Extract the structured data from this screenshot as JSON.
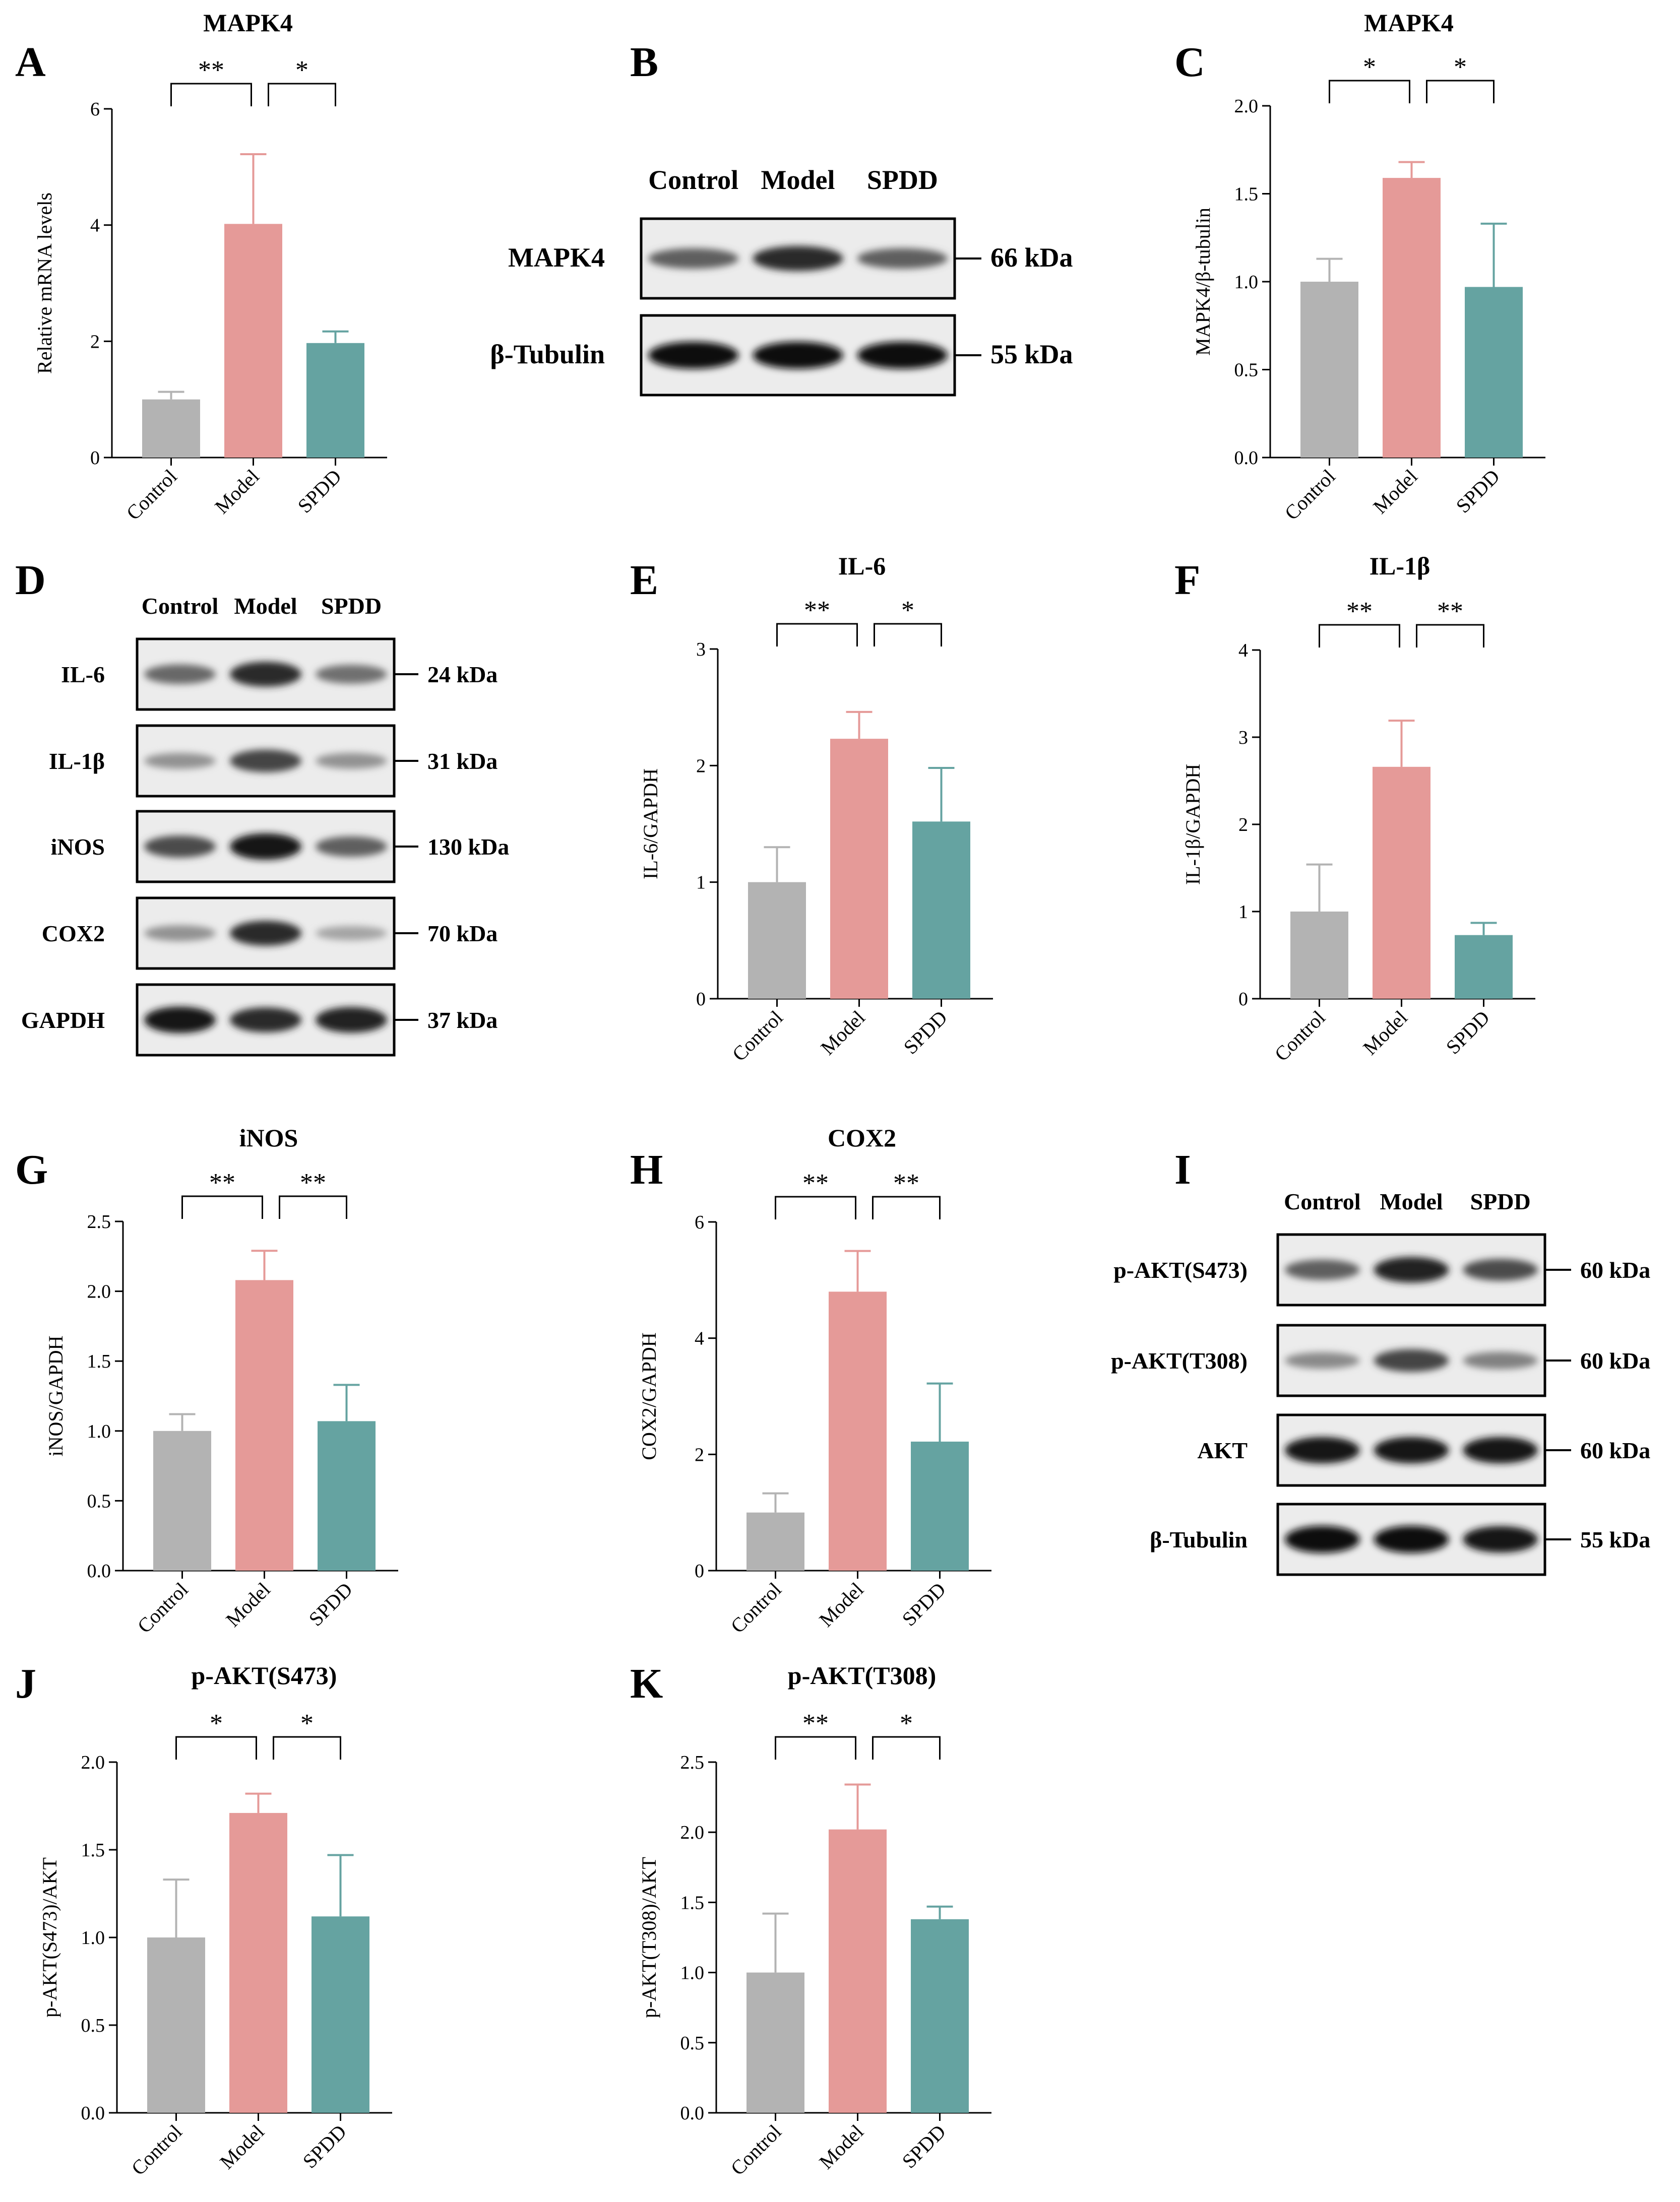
{
  "colors": {
    "control": "#b3b3b3",
    "model": "#e59a98",
    "spdd": "#65a3a1"
  },
  "bar_charts": [
    {
      "id": "A",
      "letter": "A",
      "title": "MAPK4",
      "ylabel": "Relative mRNA levels",
      "categories": [
        "Control",
        "Model",
        "SPDD"
      ],
      "values": [
        1.0,
        4.02,
        1.97
      ],
      "errors": [
        0.13,
        1.2,
        0.2
      ],
      "ylim": [
        0,
        6
      ],
      "ticks": [
        "0",
        "2",
        "4",
        "6"
      ],
      "sig": [
        {
          "from": 0,
          "to": 1,
          "label": "**"
        },
        {
          "from": 1,
          "to": 2,
          "label": "*"
        }
      ]
    },
    {
      "id": "C",
      "letter": "C",
      "title": "MAPK4",
      "ylabel": "MAPK4/β-tubulin",
      "categories": [
        "Control",
        "Model",
        "SPDD"
      ],
      "values": [
        1.0,
        1.59,
        0.97
      ],
      "errors": [
        0.13,
        0.09,
        0.36
      ],
      "ylim": [
        0,
        2
      ],
      "ticks": [
        "0.0",
        "0.5",
        "1.0",
        "1.5",
        "2.0"
      ],
      "sig": [
        {
          "from": 0,
          "to": 1,
          "label": "*"
        },
        {
          "from": 1,
          "to": 2,
          "label": "*"
        }
      ]
    },
    {
      "id": "E",
      "letter": "E",
      "title": "IL-6",
      "ylabel": "IL-6/GAPDH",
      "categories": [
        "Control",
        "Model",
        "SPDD"
      ],
      "values": [
        1.0,
        2.23,
        1.52
      ],
      "errors": [
        0.3,
        0.23,
        0.46
      ],
      "ylim": [
        0,
        3
      ],
      "ticks": [
        "0",
        "1",
        "2",
        "3"
      ],
      "sig": [
        {
          "from": 0,
          "to": 1,
          "label": "**"
        },
        {
          "from": 1,
          "to": 2,
          "label": "*"
        }
      ]
    },
    {
      "id": "F",
      "letter": "F",
      "title": "IL-1β",
      "ylabel": "IL-1β/GAPDH",
      "categories": [
        "Control",
        "Model",
        "SPDD"
      ],
      "values": [
        1.0,
        2.66,
        0.73
      ],
      "errors": [
        0.54,
        0.53,
        0.14
      ],
      "ylim": [
        0,
        4
      ],
      "ticks": [
        "0",
        "1",
        "2",
        "3",
        "4"
      ],
      "sig": [
        {
          "from": 0,
          "to": 1,
          "label": "**"
        },
        {
          "from": 1,
          "to": 2,
          "label": "**"
        }
      ]
    },
    {
      "id": "G",
      "letter": "G",
      "title": "iNOS",
      "ylabel": "iNOS/GAPDH",
      "categories": [
        "Control",
        "Model",
        "SPDD"
      ],
      "values": [
        1.0,
        2.08,
        1.07
      ],
      "errors": [
        0.12,
        0.21,
        0.26
      ],
      "ylim": [
        0,
        2.5
      ],
      "ticks": [
        "0.0",
        "0.5",
        "1.0",
        "1.5",
        "2.0",
        "2.5"
      ],
      "sig": [
        {
          "from": 0,
          "to": 1,
          "label": "**"
        },
        {
          "from": 1,
          "to": 2,
          "label": "**"
        }
      ]
    },
    {
      "id": "H",
      "letter": "H",
      "title": "COX2",
      "ylabel": "COX2/GAPDH",
      "categories": [
        "Control",
        "Model",
        "SPDD"
      ],
      "values": [
        1.0,
        4.8,
        2.22
      ],
      "errors": [
        0.33,
        0.7,
        1.0
      ],
      "ylim": [
        0,
        6
      ],
      "ticks": [
        "0",
        "2",
        "4",
        "6"
      ],
      "sig": [
        {
          "from": 0,
          "to": 1,
          "label": "**"
        },
        {
          "from": 1,
          "to": 2,
          "label": "**"
        }
      ]
    },
    {
      "id": "J",
      "letter": "J",
      "title": "p-AKT(S473)",
      "ylabel": "p-AKT(S473)/AKT",
      "categories": [
        "Control",
        "Model",
        "SPDD"
      ],
      "values": [
        1.0,
        1.71,
        1.12
      ],
      "errors": [
        0.33,
        0.11,
        0.35
      ],
      "ylim": [
        0,
        2
      ],
      "ticks": [
        "0.0",
        "0.5",
        "1.0",
        "1.5",
        "2.0"
      ],
      "sig": [
        {
          "from": 0,
          "to": 1,
          "label": "*"
        },
        {
          "from": 1,
          "to": 2,
          "label": "*"
        }
      ]
    },
    {
      "id": "K",
      "letter": "K",
      "title": "p-AKT(T308)",
      "ylabel": "p-AKT(T308)/AKT",
      "categories": [
        "Control",
        "Model",
        "SPDD"
      ],
      "values": [
        1.0,
        2.02,
        1.38
      ],
      "errors": [
        0.42,
        0.32,
        0.09
      ],
      "ylim": [
        0,
        2.5
      ],
      "ticks": [
        "0.0",
        "0.5",
        "1.0",
        "1.5",
        "2.0",
        "2.5"
      ],
      "sig": [
        {
          "from": 0,
          "to": 1,
          "label": "**"
        },
        {
          "from": 1,
          "to": 2,
          "label": "*"
        }
      ]
    }
  ],
  "blots": [
    {
      "id": "B",
      "letter": "B",
      "lanes": [
        "Control",
        "Model",
        "SPDD"
      ],
      "rows": [
        {
          "label": "MAPK4",
          "kda": "66 kDa",
          "intensity": [
            0.55,
            0.85,
            0.55
          ]
        },
        {
          "label": "β-Tubulin",
          "kda": "55 kDa",
          "intensity": [
            1.0,
            1.0,
            1.0
          ]
        }
      ]
    },
    {
      "id": "D",
      "letter": "D",
      "lanes": [
        "Control",
        "Model",
        "SPDD"
      ],
      "rows": [
        {
          "label": "IL-6",
          "kda": "24 kDa",
          "intensity": [
            0.5,
            0.85,
            0.45
          ]
        },
        {
          "label": "IL-1β",
          "kda": "31 kDa",
          "intensity": [
            0.25,
            0.7,
            0.25
          ]
        },
        {
          "label": "iNOS",
          "kda": "130 kDa",
          "intensity": [
            0.65,
            0.95,
            0.55
          ]
        },
        {
          "label": "COX2",
          "kda": "70 kDa",
          "intensity": [
            0.25,
            0.85,
            0.15
          ]
        },
        {
          "label": "GAPDH",
          "kda": "37 kDa",
          "intensity": [
            0.95,
            0.85,
            0.9
          ]
        }
      ]
    },
    {
      "id": "I",
      "letter": "I",
      "lanes": [
        "Control",
        "Model",
        "SPDD"
      ],
      "rows": [
        {
          "label": "p-AKT(S473)",
          "kda": "60 kDa",
          "intensity": [
            0.55,
            0.9,
            0.65
          ]
        },
        {
          "label": "p-AKT(T308)",
          "kda": "60 kDa",
          "intensity": [
            0.3,
            0.7,
            0.35
          ]
        },
        {
          "label": "AKT",
          "kda": "60 kDa",
          "intensity": [
            0.95,
            0.95,
            0.95
          ]
        },
        {
          "label": "β-Tubulin",
          "kda": "55 kDa",
          "intensity": [
            1.0,
            1.0,
            0.95
          ]
        }
      ]
    }
  ]
}
